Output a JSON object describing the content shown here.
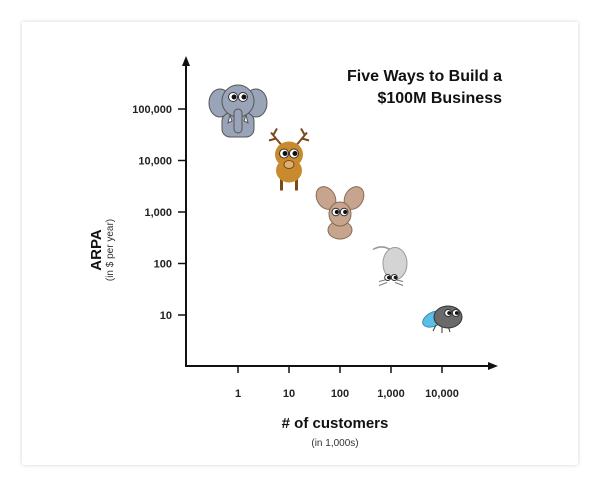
{
  "chart_data": {
    "type": "scatter",
    "title_lines": [
      "Five Ways to Build a",
      "$100M Business"
    ],
    "xlabel": "# of customers",
    "xlabel_sub": "(in 1,000s)",
    "ylabel": "ARPA",
    "ylabel_sub": "(in $ per year)",
    "x_scale": "log",
    "y_scale": "log",
    "x_ticks": [
      1,
      10,
      100,
      1000,
      10000
    ],
    "x_tick_labels": [
      "1",
      "10",
      "100",
      "1,000",
      "10,000"
    ],
    "y_ticks": [
      10,
      100,
      1000,
      10000,
      100000
    ],
    "y_tick_labels": [
      "10",
      "100",
      "1,000",
      "10,000",
      "100,000"
    ],
    "grid": false,
    "points": [
      {
        "x": 1,
        "y": 100000,
        "marker": "elephant"
      },
      {
        "x": 10,
        "y": 10000,
        "marker": "deer"
      },
      {
        "x": 100,
        "y": 1000,
        "marker": "rabbit"
      },
      {
        "x": 1000,
        "y": 100,
        "marker": "mouse"
      },
      {
        "x": 10000,
        "y": 10,
        "marker": "fly"
      }
    ],
    "colors": {
      "elephant": "#9aa4b8",
      "deer": "#c98a2e",
      "rabbit": "#c7a48e",
      "mouse": "#d4d4d4",
      "fly": "#6a6a6a",
      "fly_wing": "#5bc0e8"
    }
  }
}
